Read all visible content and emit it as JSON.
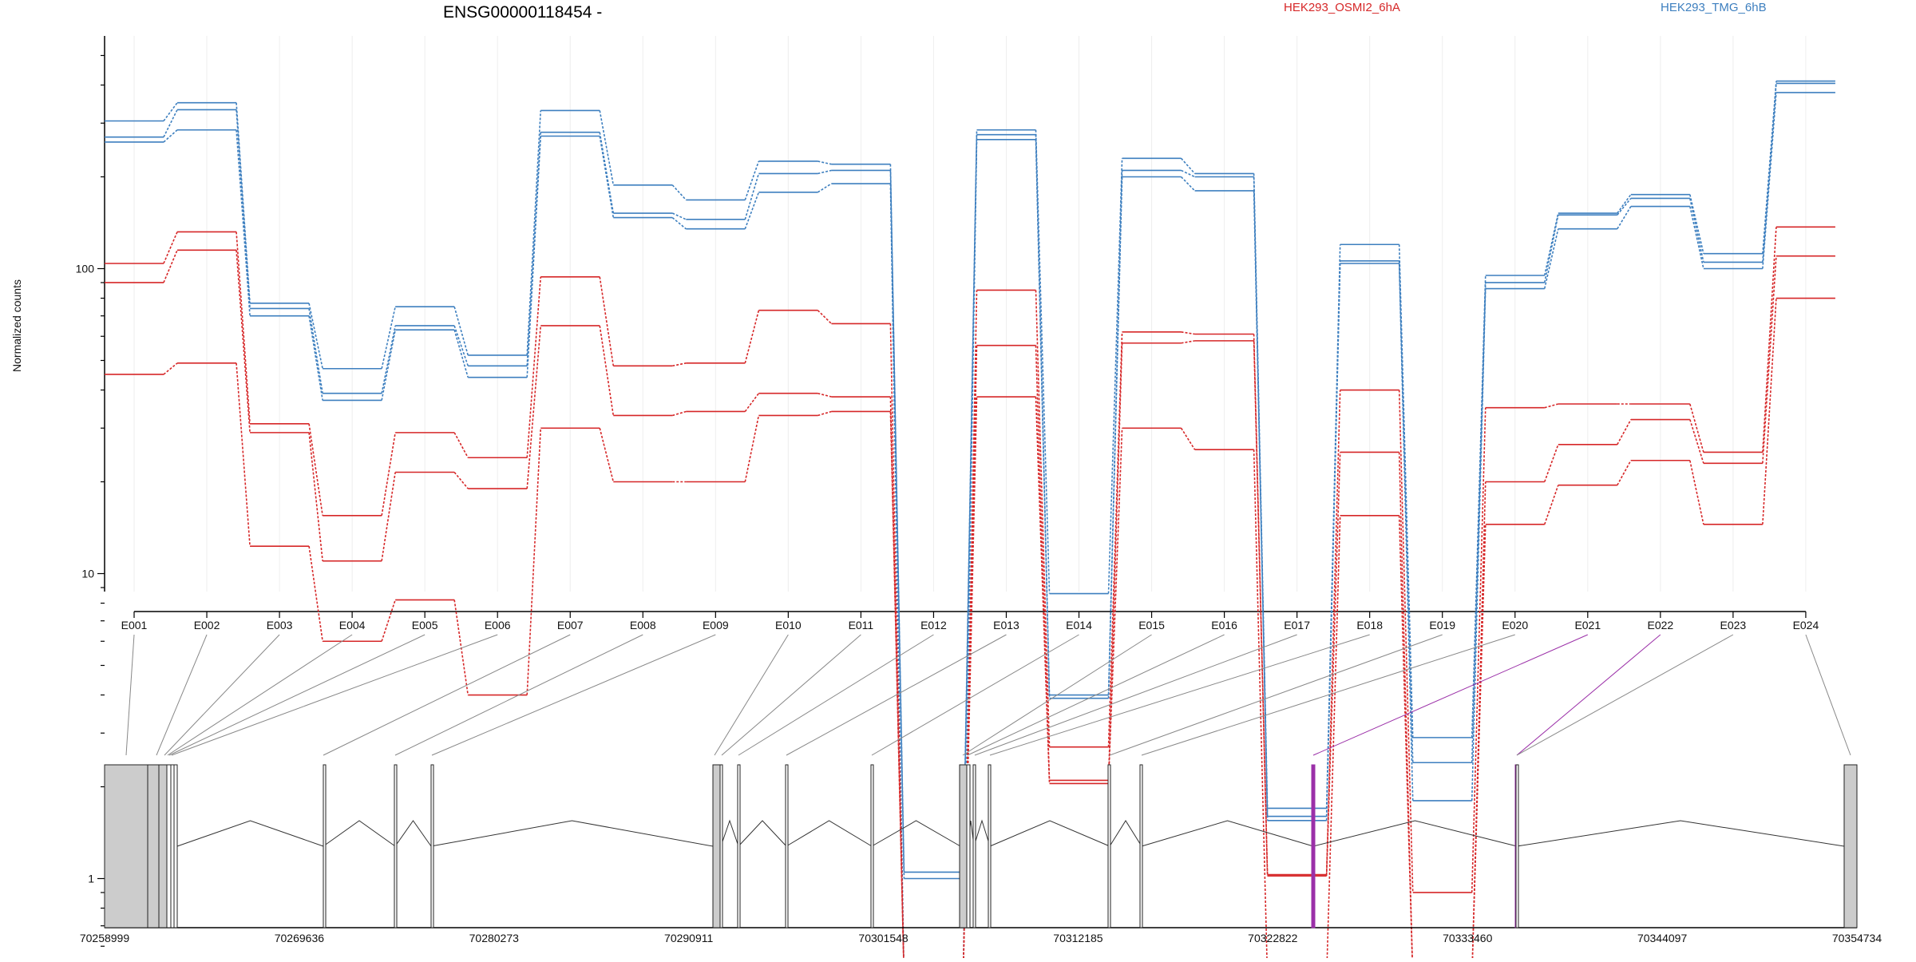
{
  "chart_data": {
    "type": "line",
    "title": "ENSG00000118454 -",
    "xlabel": "",
    "ylabel": "Normalized counts",
    "yscale": "log",
    "ylim": [
      0.47,
      520
    ],
    "y_ticks": [
      1,
      10,
      100
    ],
    "y_tick_labels": [
      "1",
      "10",
      "100"
    ],
    "grid": "vertical-light",
    "legend_position": "top",
    "categories": [
      "E001",
      "E002",
      "E003",
      "E004",
      "E005",
      "E006",
      "E007",
      "E008",
      "E009",
      "E010",
      "E011",
      "E012",
      "E013",
      "E014",
      "E015",
      "E016",
      "E017",
      "E018",
      "E019",
      "E020",
      "E021",
      "E022",
      "E023",
      "E024"
    ],
    "groups": [
      {
        "name": "HEK293_OSMI2_6hA",
        "color": "#d62728"
      },
      {
        "name": "HEK293_TMG_6hB",
        "color": "#3d7fbf"
      }
    ],
    "series": [
      {
        "group": 1,
        "values": [
          305,
          350,
          77,
          47,
          75,
          52,
          330,
          188,
          168,
          225,
          220,
          1.05,
          285,
          8.6,
          230,
          205,
          1.7,
          120,
          2.9,
          95,
          152,
          175,
          112,
          412
        ]
      },
      {
        "group": 1,
        "values": [
          270,
          332,
          74,
          39,
          65,
          48,
          280,
          152,
          145,
          205,
          210,
          1.0,
          275,
          4.0,
          210,
          200,
          1.55,
          106,
          2.4,
          90,
          150,
          170,
          105,
          405
        ]
      },
      {
        "group": 1,
        "values": [
          260,
          285,
          70,
          37,
          63,
          44,
          272,
          147,
          135,
          178,
          190,
          0.47,
          265,
          3.9,
          200,
          180,
          1.6,
          104,
          1.8,
          86,
          135,
          160,
          100,
          378
        ]
      },
      {
        "group": 0,
        "values": [
          104,
          132,
          31,
          15.5,
          29,
          24,
          94,
          48,
          49,
          73,
          66,
          0.47,
          85,
          2.7,
          62,
          61,
          1.03,
          40,
          0.9,
          35,
          36,
          36,
          25,
          137
        ]
      },
      {
        "group": 0,
        "values": [
          90,
          115,
          29,
          11,
          21.5,
          19,
          65,
          33,
          34,
          39,
          38,
          0.47,
          56,
          2.1,
          57,
          58,
          1.02,
          25,
          0.47,
          20,
          26.5,
          32,
          23,
          110
        ]
      },
      {
        "group": 0,
        "values": [
          45,
          49,
          12.3,
          6.0,
          8.2,
          4.0,
          30,
          20,
          20,
          33,
          34,
          0.47,
          38,
          2.05,
          30,
          25.5,
          0.47,
          15.5,
          0.47,
          14.5,
          19.5,
          23.5,
          14.5,
          80
        ]
      }
    ],
    "gene_model": {
      "genomic_range": [
        70258999,
        70354734
      ],
      "tick_labels": [
        "70258999",
        "70269636",
        "70280273",
        "70290911",
        "70301548",
        "70312185",
        "70322822",
        "70333460",
        "70344097",
        "70354734"
      ],
      "highlight_color": "#9b30a8",
      "highlighted_exons": [
        "E021",
        "E022"
      ],
      "exon_fill": "#cccccc"
    }
  }
}
